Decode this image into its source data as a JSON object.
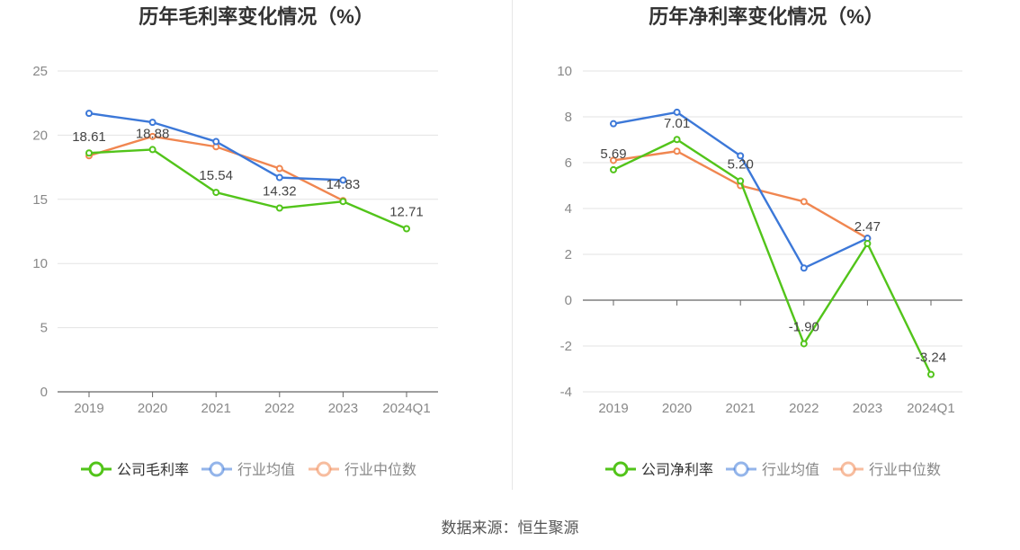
{
  "footer": {
    "source": "数据来源：恒生聚源"
  },
  "chart_data": [
    {
      "type": "line",
      "title": "历年毛利率变化情况（%）",
      "categories": [
        "2019",
        "2020",
        "2021",
        "2022",
        "2023",
        "2024Q1"
      ],
      "ylim": [
        0,
        25
      ],
      "yticks": [
        0,
        5,
        10,
        15,
        20,
        25
      ],
      "grid": true,
      "legend_position": "bottom",
      "series": [
        {
          "name": "公司毛利率",
          "color": "#52c41a",
          "labeled": true,
          "values": [
            18.61,
            18.88,
            15.54,
            14.32,
            14.83,
            12.71
          ]
        },
        {
          "name": "行业均值",
          "color": "#3c78d8",
          "labeled": false,
          "values": [
            21.7,
            21.0,
            19.5,
            16.7,
            16.5,
            null
          ]
        },
        {
          "name": "行业中位数",
          "color": "#f08650",
          "labeled": false,
          "values": [
            18.4,
            19.9,
            19.1,
            17.4,
            14.9,
            null
          ]
        }
      ]
    },
    {
      "type": "line",
      "title": "历年净利率变化情况（%）",
      "categories": [
        "2019",
        "2020",
        "2021",
        "2022",
        "2023",
        "2024Q1"
      ],
      "ylim": [
        -4,
        10
      ],
      "yticks": [
        -4,
        -2,
        0,
        2,
        4,
        6,
        8,
        10
      ],
      "grid": true,
      "legend_position": "bottom",
      "series": [
        {
          "name": "公司净利率",
          "color": "#52c41a",
          "labeled": true,
          "values": [
            5.69,
            7.01,
            5.2,
            -1.9,
            2.47,
            -3.24
          ]
        },
        {
          "name": "行业均值",
          "color": "#3c78d8",
          "labeled": false,
          "values": [
            7.7,
            8.2,
            6.3,
            1.4,
            2.7,
            null
          ]
        },
        {
          "name": "行业中位数",
          "color": "#f08650",
          "labeled": false,
          "values": [
            6.1,
            6.5,
            5.0,
            4.3,
            2.7,
            null
          ]
        }
      ]
    }
  ]
}
